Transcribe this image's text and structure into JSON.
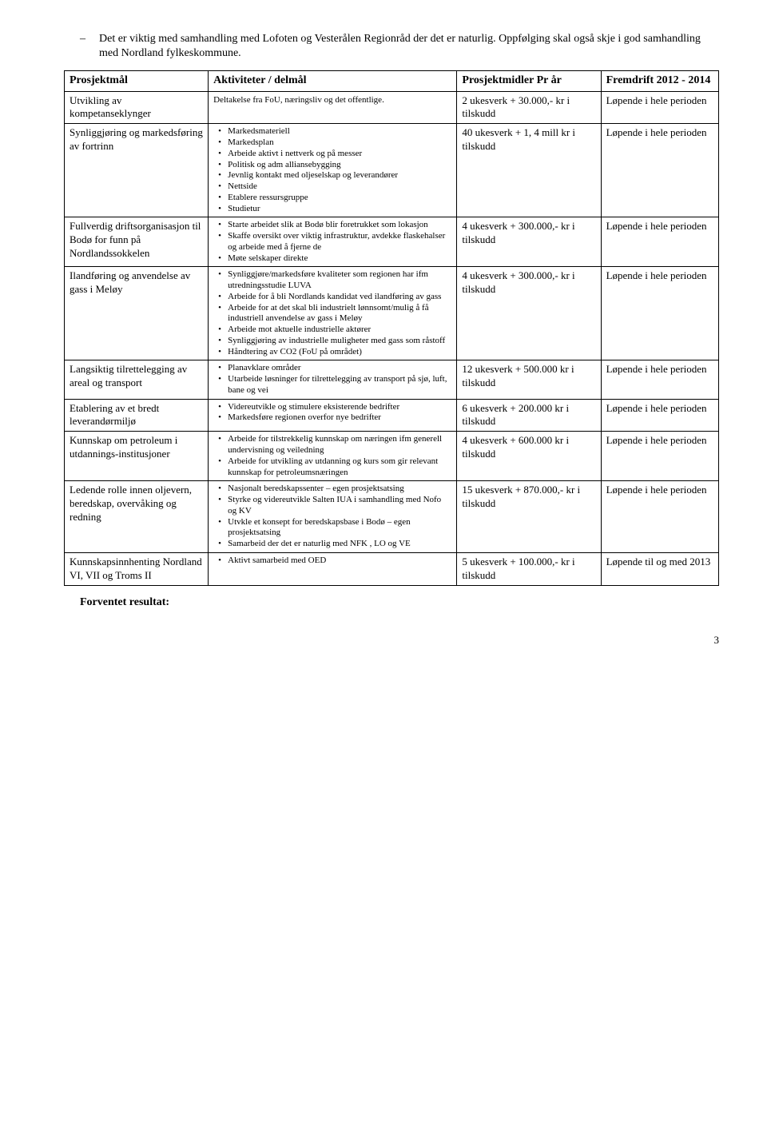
{
  "intro": {
    "text": "Det er viktig med samhandling med Lofoten og Vesterålen Regionråd der det er naturlig. Oppfølging skal også skje i god samhandling med Nordland fylkeskommune."
  },
  "table": {
    "headers": {
      "c1": "Prosjektmål",
      "c2": "Aktiviteter / delmål",
      "c3": "Prosjektmidler Pr år",
      "c4": "Fremdrift 2012 - 2014"
    },
    "rows": [
      {
        "goal": "Utvikling av kompetanseklynger",
        "act_plain": "Deltakelse fra FoU, næringsliv og det offentlige.",
        "funds": "2 ukesverk + 30.000,- kr i tilskudd",
        "progress": "Løpende i hele perioden"
      },
      {
        "goal": "Synliggjøring og markedsføring av fortrinn",
        "act_list": [
          "Markedsmateriell",
          "Markedsplan",
          "Arbeide aktivt i nettverk og på messer",
          "Politisk og adm alliansebygging",
          "Jevnlig kontakt med oljeselskap og leverandører",
          "Nettside",
          "Etablere ressursgruppe",
          "Studietur"
        ],
        "funds": "40 ukesverk + 1, 4 mill kr i tilskudd",
        "progress": "Løpende i hele perioden"
      },
      {
        "goal": "Fullverdig driftsorganisasjon til Bodø for funn på Nordlandssokkelen",
        "act_list": [
          "Starte arbeidet slik at Bodø blir foretrukket som lokasjon",
          "Skaffe oversikt over viktig infrastruktur, avdekke flaskehalser og arbeide med å fjerne de",
          "Møte selskaper direkte"
        ],
        "funds": "4 ukesverk + 300.000,- kr i tilskudd",
        "progress": "Løpende i hele perioden"
      },
      {
        "goal": "Ilandføring og anvendelse av gass i Meløy",
        "act_list": [
          "Synliggjøre/markedsføre kvaliteter som regionen har ifm utredningsstudie LUVA",
          "Arbeide for å bli Nordlands kandidat ved ilandføring av gass",
          "Arbeide for at det skal bli industrielt lønnsomt/mulig å få industriell anvendelse av gass i Meløy",
          "Arbeide mot aktuelle industrielle aktører",
          "Synliggjøring av industrielle muligheter med gass som råstoff",
          "Håndtering av CO2 (FoU på området)"
        ],
        "funds": "4 ukesverk + 300.000,- kr i tilskudd",
        "progress": "Løpende i hele perioden"
      },
      {
        "goal": "Langsiktig tilrettelegging av areal og transport",
        "act_list": [
          "Planavklare områder",
          "Utarbeide løsninger for tilrettelegging av transport på sjø, luft, bane og vei"
        ],
        "funds": "12 ukesverk + 500.000 kr i tilskudd",
        "progress": "Løpende i hele perioden"
      },
      {
        "goal": "Etablering av et bredt leverandørmiljø",
        "act_list": [
          "Videreutvikle og stimulere eksisterende bedrifter",
          "Markedsføre regionen overfor nye bedrifter"
        ],
        "funds": "6 ukesverk + 200.000 kr i tilskudd",
        "progress": "Løpende i hele perioden"
      },
      {
        "goal": "Kunnskap om petroleum i utdannings-institusjoner",
        "act_list": [
          "Arbeide for tilstrekkelig kunnskap om næringen ifm generell undervisning og veiledning",
          "Arbeide for utvikling av utdanning og kurs som gir relevant kunnskap for petroleumsnæringen"
        ],
        "funds": "4 ukesverk + 600.000 kr i tilskudd",
        "progress": "Løpende i hele perioden"
      },
      {
        "goal": "Ledende rolle innen oljevern, beredskap, overvåking og redning",
        "act_list": [
          "Nasjonalt beredskapssenter – egen prosjektsatsing",
          "Styrke og videreutvikle Salten IUA i samhandling med Nofo og KV",
          "Utvkle et konsept for beredskapsbase i Bodø – egen prosjektsatsing",
          "Samarbeid der det er naturlig med NFK , LO og VE"
        ],
        "funds": "15 ukesverk + 870.000,- kr i tilskudd",
        "progress": "Løpende i hele perioden"
      },
      {
        "goal": "Kunnskapsinnhenting Nordland VI, VII og Troms II",
        "act_list": [
          "Aktivt samarbeid med OED"
        ],
        "funds": "5 ukesverk + 100.000,- kr i tilskudd",
        "progress": "Løpende til og med 2013"
      }
    ]
  },
  "footer": "Forventet resultat:",
  "page_number": "3"
}
